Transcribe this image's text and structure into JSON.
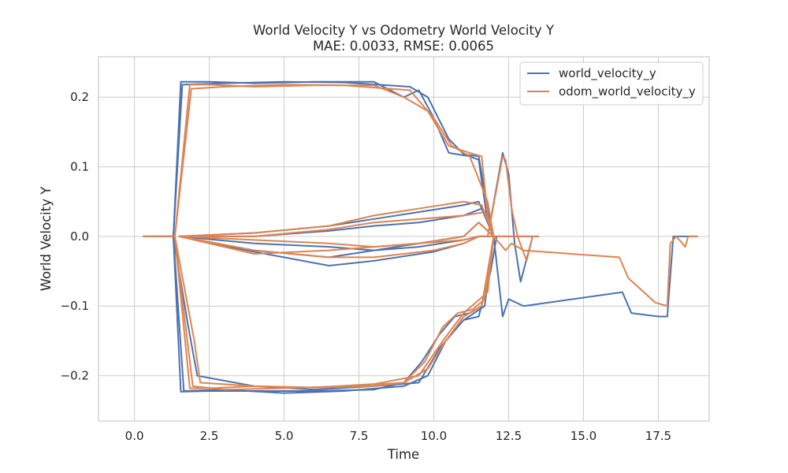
{
  "chart_data": {
    "type": "line",
    "title": "World Velocity Y vs Odometry World Velocity Y",
    "subtitle": "MAE: 0.0033, RMSE: 0.0065",
    "xlabel": "Time",
    "ylabel": "World Velocity Y",
    "xlim": [
      -1.2,
      19.2
    ],
    "ylim": [
      -0.265,
      0.258
    ],
    "xticks": [
      0.0,
      2.5,
      5.0,
      7.5,
      10.0,
      12.5,
      15.0,
      17.5
    ],
    "xtick_labels": [
      "0.0",
      "2.5",
      "5.0",
      "7.5",
      "10.0",
      "12.5",
      "15.0",
      "17.5"
    ],
    "yticks": [
      0.2,
      0.1,
      0.0,
      -0.1,
      -0.2
    ],
    "ytick_labels": [
      "0.2",
      "0.1",
      "0.0",
      "−0.1",
      "−0.2"
    ],
    "grid": true,
    "legend_position": "top-right",
    "colors": {
      "world": "#4c72b0",
      "odom": "#dd8452",
      "grid": "#cccccc",
      "spine": "#cccccc",
      "text": "#262626"
    },
    "series": [
      {
        "name": "world_velocity_y",
        "color": "#4c72b0",
        "runs": [
          {
            "x": [
              0.3,
              1.3,
              1.55,
              2.5,
              4.0,
              6.0,
              8.0,
              9.0,
              9.5,
              10.0,
              10.5,
              11.2,
              11.5,
              11.8,
              12.0
            ],
            "y": [
              0.0,
              0.0,
              0.222,
              0.222,
              0.22,
              0.222,
              0.222,
              0.2,
              0.21,
              0.17,
              0.12,
              0.115,
              0.11,
              0.02,
              0.0
            ]
          },
          {
            "x": [
              1.3,
              1.6,
              3.0,
              5.0,
              7.0,
              9.2,
              9.8,
              10.5,
              11.0,
              11.5,
              11.8,
              12.0
            ],
            "y": [
              0.0,
              0.218,
              0.22,
              0.222,
              0.221,
              0.215,
              0.2,
              0.14,
              0.118,
              0.115,
              0.04,
              0.0
            ]
          },
          {
            "x": [
              0.3,
              1.3,
              1.55,
              2.5,
              4.0,
              6.0,
              8.0,
              9.0,
              9.6,
              10.2,
              10.7,
              11.2,
              11.6,
              11.9,
              12.0
            ],
            "y": [
              0.0,
              0.0,
              -0.223,
              -0.222,
              -0.222,
              -0.222,
              -0.22,
              -0.21,
              -0.18,
              -0.14,
              -0.115,
              -0.11,
              -0.1,
              -0.03,
              0.0
            ]
          },
          {
            "x": [
              1.3,
              1.65,
              3.0,
              5.0,
              7.0,
              9.0,
              9.8,
              10.4,
              11.0,
              11.5,
              11.9,
              12.1
            ],
            "y": [
              0.0,
              -0.222,
              -0.22,
              -0.225,
              -0.222,
              -0.215,
              -0.2,
              -0.15,
              -0.12,
              -0.115,
              -0.05,
              0.0
            ]
          },
          {
            "x": [
              1.3,
              1.8,
              2.1,
              4.0,
              6.0,
              8.0,
              9.5,
              10.2,
              11.0,
              11.7,
              12.0
            ],
            "y": [
              0.0,
              -0.13,
              -0.2,
              -0.215,
              -0.22,
              -0.215,
              -0.21,
              -0.16,
              -0.12,
              -0.1,
              0.0
            ]
          },
          {
            "x": [
              1.5,
              4.0,
              6.5,
              8.0,
              10.0,
              11.0,
              11.5,
              12.0
            ],
            "y": [
              0.0,
              -0.022,
              -0.042,
              -0.035,
              -0.022,
              -0.01,
              0.0,
              0.0
            ]
          },
          {
            "x": [
              1.5,
              4.0,
              6.5,
              8.0,
              9.5,
              11.0,
              11.5,
              12.0
            ],
            "y": [
              0.0,
              -0.02,
              -0.03,
              -0.02,
              -0.01,
              0.0,
              0.02,
              0.0
            ]
          },
          {
            "x": [
              1.5,
              4.0,
              6.5,
              8.0,
              9.5,
              11.0,
              11.5,
              12.0
            ],
            "y": [
              0.0,
              0.005,
              0.015,
              0.025,
              0.035,
              0.045,
              0.05,
              0.0
            ]
          },
          {
            "x": [
              1.5,
              4.0,
              6.5,
              8.0,
              9.5,
              11.0,
              11.6,
              12.0
            ],
            "y": [
              0.0,
              0.0,
              0.008,
              0.015,
              0.02,
              0.03,
              0.04,
              0.0
            ]
          },
          {
            "x": [
              1.5,
              4.0,
              6.5,
              8.0,
              9.5,
              11.0,
              11.5,
              12.0
            ],
            "y": [
              0.0,
              -0.01,
              -0.015,
              -0.02,
              -0.015,
              -0.005,
              0.0,
              0.0
            ]
          },
          {
            "x": [
              11.8,
              12.3,
              12.5,
              12.7,
              12.9,
              13.3
            ],
            "y": [
              0.0,
              0.12,
              0.09,
              -0.01,
              -0.065,
              0.0
            ]
          },
          {
            "x": [
              12.0,
              12.3,
              12.5,
              13.0,
              16.3,
              16.6,
              17.5,
              17.8,
              18.0,
              18.8
            ],
            "y": [
              0.0,
              -0.115,
              -0.09,
              -0.1,
              -0.08,
              -0.11,
              -0.115,
              -0.115,
              0.0,
              0.0
            ]
          },
          {
            "x": [
              12.0,
              13.5
            ],
            "y": [
              0.0,
              0.0
            ]
          }
        ]
      },
      {
        "name": "odom_world_velocity_y",
        "color": "#dd8452",
        "runs": [
          {
            "x": [
              0.3,
              1.35,
              1.85,
              2.5,
              4.0,
              6.0,
              8.0,
              9.0,
              9.8,
              10.5,
              11.2,
              11.6,
              11.8,
              12.0
            ],
            "y": [
              0.0,
              0.0,
              0.218,
              0.218,
              0.215,
              0.217,
              0.217,
              0.2,
              0.18,
              0.13,
              0.12,
              0.115,
              0.03,
              0.0
            ]
          },
          {
            "x": [
              1.35,
              1.9,
              3.0,
              5.0,
              7.0,
              9.2,
              10.0,
              10.6,
              11.2,
              11.8,
              12.0
            ],
            "y": [
              0.0,
              0.212,
              0.215,
              0.218,
              0.217,
              0.21,
              0.17,
              0.13,
              0.115,
              0.05,
              0.0
            ]
          },
          {
            "x": [
              0.3,
              1.35,
              1.85,
              2.5,
              4.0,
              6.0,
              8.0,
              9.0,
              9.7,
              10.3,
              10.8,
              11.3,
              11.7,
              12.0
            ],
            "y": [
              0.0,
              0.0,
              -0.218,
              -0.218,
              -0.215,
              -0.217,
              -0.215,
              -0.21,
              -0.18,
              -0.13,
              -0.11,
              -0.105,
              -0.09,
              0.0
            ]
          },
          {
            "x": [
              1.35,
              1.95,
              3.0,
              5.0,
              7.0,
              9.0,
              9.8,
              10.4,
              11.0,
              11.6,
              12.0
            ],
            "y": [
              0.0,
              -0.215,
              -0.22,
              -0.218,
              -0.215,
              -0.21,
              -0.19,
              -0.15,
              -0.115,
              -0.1,
              0.0
            ]
          },
          {
            "x": [
              1.35,
              2.0,
              2.2,
              4.0,
              6.0,
              8.0,
              9.5,
              10.3,
              11.0,
              11.8,
              12.0
            ],
            "y": [
              0.0,
              -0.15,
              -0.21,
              -0.215,
              -0.217,
              -0.212,
              -0.2,
              -0.15,
              -0.11,
              -0.08,
              0.0
            ]
          },
          {
            "x": [
              1.5,
              4.0,
              6.5,
              8.0,
              10.0,
              11.0,
              11.5,
              12.0
            ],
            "y": [
              0.0,
              -0.02,
              -0.03,
              -0.03,
              -0.02,
              -0.01,
              0.0,
              0.0
            ]
          },
          {
            "x": [
              1.5,
              4.0,
              6.5,
              8.0,
              9.5,
              11.0,
              11.5,
              12.0
            ],
            "y": [
              0.0,
              -0.025,
              -0.02,
              -0.015,
              -0.01,
              0.0,
              0.02,
              0.0
            ]
          },
          {
            "x": [
              1.5,
              4.0,
              6.5,
              8.0,
              9.5,
              11.0,
              11.6,
              12.0
            ],
            "y": [
              0.0,
              0.005,
              0.015,
              0.03,
              0.04,
              0.05,
              0.045,
              0.0
            ]
          },
          {
            "x": [
              1.5,
              4.0,
              6.5,
              8.0,
              9.5,
              11.0,
              11.7,
              12.0
            ],
            "y": [
              0.0,
              0.0,
              0.01,
              0.02,
              0.025,
              0.03,
              0.035,
              0.0
            ]
          },
          {
            "x": [
              1.5,
              4.0,
              6.5,
              8.0,
              9.5,
              11.0,
              11.5,
              12.0
            ],
            "y": [
              0.0,
              -0.005,
              -0.01,
              -0.015,
              -0.01,
              -0.005,
              0.0,
              0.0
            ]
          },
          {
            "x": [
              11.8,
              12.3,
              12.4,
              12.6,
              12.8,
              13.1,
              13.3
            ],
            "y": [
              0.0,
              0.115,
              0.11,
              0.04,
              0.0,
              -0.035,
              0.0
            ]
          },
          {
            "x": [
              12.0,
              12.4,
              12.6,
              13.0,
              16.2,
              16.5,
              17.4,
              17.8,
              17.9,
              18.1,
              18.4,
              18.5,
              18.8
            ],
            "y": [
              0.0,
              -0.02,
              -0.01,
              -0.02,
              -0.03,
              -0.06,
              -0.095,
              -0.1,
              -0.01,
              0.0,
              -0.015,
              0.0,
              0.0
            ]
          },
          {
            "x": [
              12.0,
              13.5
            ],
            "y": [
              0.0,
              0.0
            ]
          }
        ]
      }
    ]
  }
}
